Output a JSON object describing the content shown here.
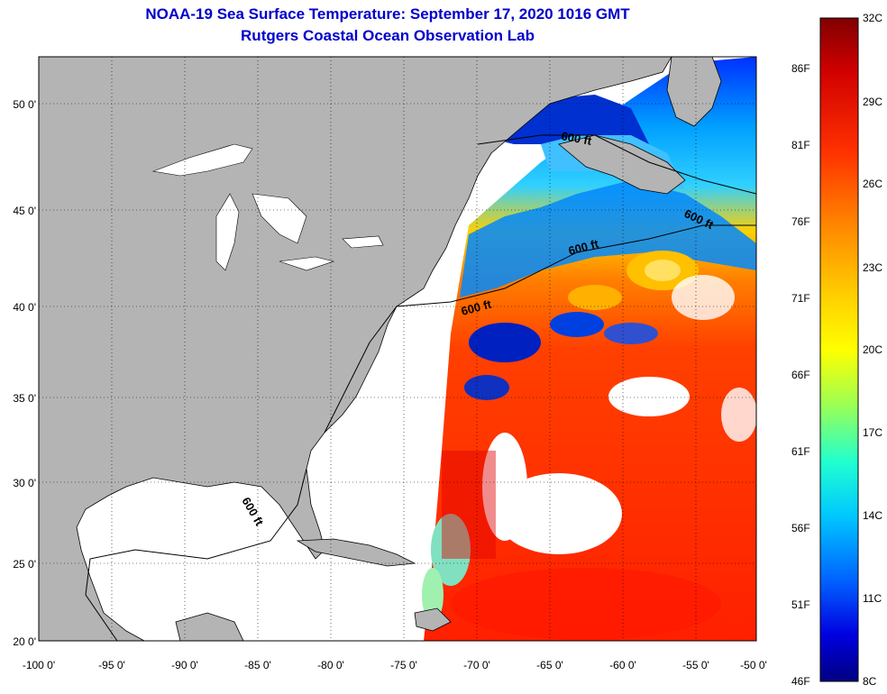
{
  "title": {
    "line1": "NOAA-19 Sea Surface Temperature:  September 17, 2020 1016 GMT",
    "line2": "Rutgers Coastal Ocean Observation Lab"
  },
  "lat_labels": [
    "50 0'",
    "45 0'",
    "40 0'",
    "35 0'",
    "30 0'",
    "25 0'",
    "20 0'"
  ],
  "lon_labels": [
    "-100 0'",
    "-95 0'",
    "-90 0'",
    "-85 0'",
    "-80 0'",
    "-75 0'",
    "-70 0'",
    "-65 0'",
    "-60 0'",
    "-55 0'",
    "-50 0'"
  ],
  "contour_labels": [
    "600 ft",
    "600 ft",
    "600 ft",
    "600 ft",
    "600 ft"
  ],
  "colorbar": {
    "fahrenheit": [
      "86F",
      "81F",
      "76F",
      "71F",
      "66F",
      "61F",
      "56F",
      "51F",
      "46F"
    ],
    "celsius": [
      "32C",
      "29C",
      "26C",
      "23C",
      "20C",
      "17C",
      "14C",
      "11C",
      "8C"
    ]
  },
  "colors": {
    "land": "#b4b4b4",
    "title": "#0000cc",
    "scale": [
      "#800000",
      "#e00000",
      "#ff6a00",
      "#ffcc00",
      "#ffff00",
      "#90ff60",
      "#00ffff",
      "#0090ff",
      "#0000ff",
      "#000090"
    ]
  }
}
